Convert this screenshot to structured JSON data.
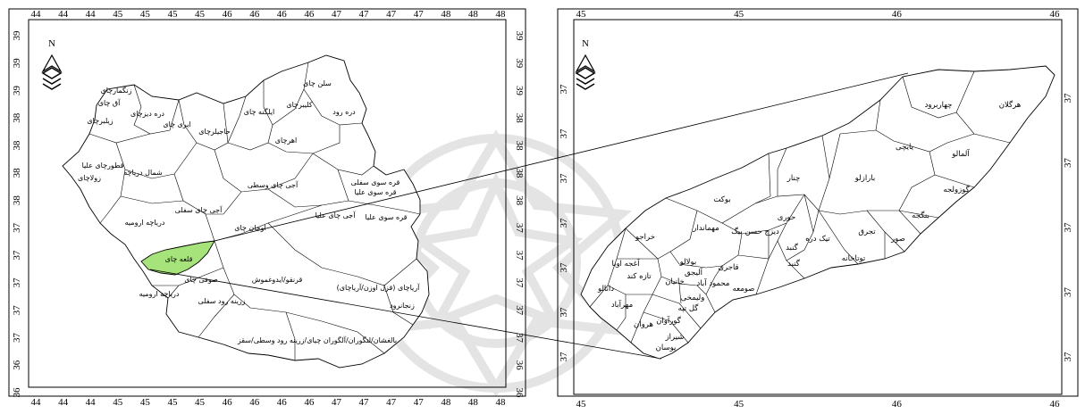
{
  "left_map": {
    "top_ticks": [
      "44",
      "44",
      "44",
      "45",
      "45",
      "45",
      "45",
      "46",
      "46",
      "46",
      "46",
      "47",
      "47",
      "47",
      "47",
      "48",
      "48",
      "48"
    ],
    "bottom_ticks": [
      "44",
      "44",
      "44",
      "45",
      "45",
      "45",
      "45",
      "46",
      "46",
      "46",
      "46",
      "47",
      "47",
      "47",
      "47",
      "48",
      "48",
      "48"
    ],
    "left_ticks": [
      "39",
      "39",
      "39",
      "38",
      "38",
      "38",
      "38",
      "37",
      "37",
      "37",
      "37",
      "37",
      "36",
      "36"
    ],
    "right_ticks": [
      "39",
      "39",
      "39",
      "38",
      "38",
      "38",
      "38",
      "37",
      "37",
      "37",
      "37",
      "37",
      "36",
      "36"
    ],
    "regions": [
      "زنگمارچای",
      "آق چای",
      "زیلبرچای",
      "دره دیزچای",
      "ایری چای",
      "حاجیلرچای",
      "ایلگنه چای",
      "کلیبرچای",
      "سلن چای",
      "دره رود",
      "اهرچای",
      "قطورچای علیا",
      "زولاچای",
      "شمال دریاچه",
      "آجی چای وسطی",
      "قره سوی سفلی",
      "قره سوی علیا",
      "آجی چای سفلی",
      "دریاچه ارومیه",
      "اوجان چای",
      "آجی چای علیا",
      "قره سوی علیا",
      "قلعه چای",
      "صوفی چای",
      "قرنقو/ایدوغموش",
      "آریاچای (قزل اوزن/آریاچای)",
      "دریاچه ارومیه",
      "زرینه رود سفلی",
      "زنجانرود",
      "بالغشان/لنگوران/آلگوران چیای/زرینه رود وسطی/سقز"
    ],
    "highlighted": "قلعه چای"
  },
  "right_map": {
    "top_ticks": [
      "45",
      "45",
      "46",
      "46"
    ],
    "bottom_ticks": [
      "45",
      "45",
      "46",
      "46"
    ],
    "left_ticks": [
      "37",
      "37",
      "37",
      "37",
      "37",
      "37",
      "37"
    ],
    "right_ticks": [
      "37",
      "37",
      "37",
      "37",
      "37"
    ],
    "regions": [
      "هرگلان",
      "چهاربرود",
      "یایچی",
      "آلمالو",
      "گوزولجه",
      "بارازلو",
      "چنار",
      "بوکت",
      "حوری",
      "بنگجه",
      "صور",
      "تجرق",
      "تیک دره",
      "مهماندار",
      "دیزج حسن بیگ",
      "خراجو",
      "گنبد",
      "گنبد",
      "توتاخانه",
      "آغجه اوبا",
      "بولالو",
      "قاجری",
      "صومعه",
      "تازه کند",
      "محمود آباد",
      "آلیجق",
      "خانیان",
      "دانالو",
      "ولیمخی",
      "گل تپه",
      "مهرآباد",
      "گورآوان",
      "هروان",
      "شیراز",
      "یوسان"
    ]
  },
  "colors": {
    "highlight": "#a6e37a",
    "outline": "#000000",
    "watermark": "#d6d6d6"
  },
  "north_label": "N"
}
